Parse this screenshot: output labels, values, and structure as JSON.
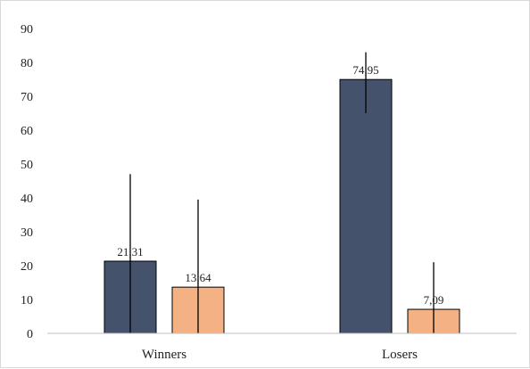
{
  "chart_data": {
    "type": "bar",
    "title": "",
    "xlabel": "",
    "ylabel": "",
    "ylim": [
      0,
      90
    ],
    "yticks": [
      0,
      10,
      20,
      30,
      40,
      50,
      60,
      70,
      80,
      90
    ],
    "grid": false,
    "categories": [
      "Winners",
      "Losers"
    ],
    "series": [
      {
        "color": "#44536b",
        "values": [
          21.31,
          74.95
        ],
        "value_labels": [
          "21,31",
          "74,95"
        ],
        "error_bars": [
          [
            0,
            47
          ],
          [
            65,
            83
          ]
        ]
      },
      {
        "color": "#f4b183",
        "values": [
          13.64,
          7.09
        ],
        "value_labels": [
          "13,64",
          "7,09"
        ],
        "error_bars": [
          [
            0,
            39.5
          ],
          [
            0,
            21
          ]
        ]
      }
    ]
  }
}
